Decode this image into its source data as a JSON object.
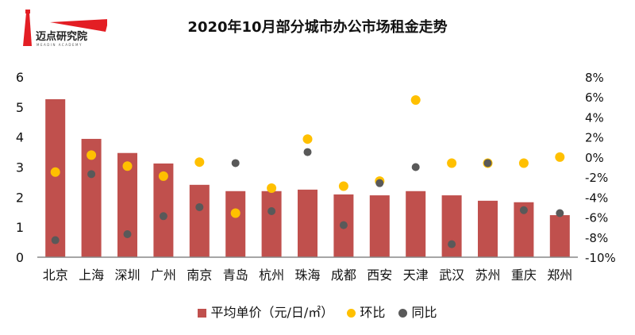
{
  "logo": {
    "name": "迈点研究院",
    "subtitle": "MEADIN ACADEMY"
  },
  "colors": {
    "bar": "#c0504d",
    "mom": "#ffc000",
    "yoy": "#595959"
  },
  "chart_data": {
    "type": "bar+scatter",
    "title": "2020年10月部分城市办公市场租金走势",
    "categories": [
      "北京",
      "上海",
      "深圳",
      "广州",
      "南京",
      "青岛",
      "杭州",
      "珠海",
      "成都",
      "西安",
      "天津",
      "武汉",
      "苏州",
      "重庆",
      "郑州"
    ],
    "series": [
      {
        "name": "平均单价（元/日/㎡）",
        "type": "bar",
        "axis": "left",
        "values": [
          5.26,
          3.94,
          3.47,
          3.12,
          2.41,
          2.2,
          2.2,
          2.25,
          2.09,
          2.06,
          2.2,
          2.06,
          1.88,
          1.83,
          1.4
        ]
      },
      {
        "name": "环比",
        "type": "scatter",
        "axis": "right",
        "values": [
          -1.5,
          0.2,
          -0.9,
          -1.9,
          -0.5,
          -5.6,
          -3.1,
          1.8,
          -2.9,
          -2.4,
          5.7,
          -0.6,
          -0.6,
          -0.6,
          0.0
        ]
      },
      {
        "name": "同比",
        "type": "scatter",
        "axis": "right",
        "values": [
          -8.3,
          -1.7,
          -7.7,
          -5.9,
          -5.0,
          -0.6,
          -5.4,
          0.5,
          -6.8,
          -2.6,
          -1.0,
          -8.7,
          -0.6,
          -5.3,
          -5.6
        ]
      }
    ],
    "left_axis": {
      "ylim": [
        0,
        6
      ],
      "ticks": [
        "0",
        "1",
        "2",
        "3",
        "4",
        "5",
        "6"
      ]
    },
    "right_axis": {
      "ylim": [
        -10,
        8
      ],
      "ticks": [
        "-10%",
        "-8%",
        "-6%",
        "-4%",
        "-2%",
        "0%",
        "2%",
        "4%",
        "6%",
        "8%"
      ]
    },
    "legend_position": "bottom"
  }
}
